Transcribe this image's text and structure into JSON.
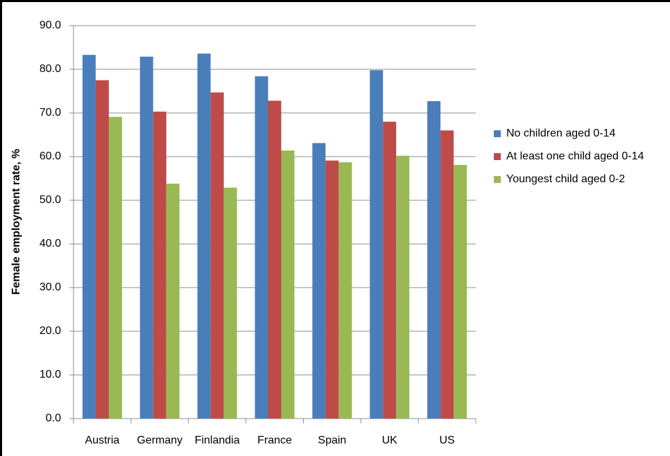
{
  "chart_data": {
    "type": "bar",
    "y_label": "Female employment rate, %",
    "categories": [
      "Austria",
      "Germany",
      "Finlandia",
      "France",
      "Spain",
      "UK",
      "US"
    ],
    "series": [
      {
        "name": "No children aged 0-14",
        "color": "#4a7ebb",
        "values": [
          83.3,
          82.9,
          83.6,
          78.4,
          63.1,
          79.8,
          72.7
        ]
      },
      {
        "name": "At least one child aged 0-14",
        "color": "#be4b48",
        "values": [
          77.5,
          70.3,
          74.7,
          72.8,
          59.1,
          68.0,
          66.0
        ]
      },
      {
        "name": "Youngest child aged 0-2",
        "color": "#98b954",
        "values": [
          69.1,
          53.8,
          52.9,
          61.4,
          58.7,
          60.2,
          58.1
        ]
      }
    ],
    "ylim": [
      0,
      90
    ],
    "yticks": [
      {
        "value": 0,
        "label": "0.0"
      },
      {
        "value": 10,
        "label": "10.0"
      },
      {
        "value": 20,
        "label": "20.0"
      },
      {
        "value": 30,
        "label": "30.0"
      },
      {
        "value": 40,
        "label": "40.0"
      },
      {
        "value": 50,
        "label": "50.0"
      },
      {
        "value": 60,
        "label": "60.0"
      },
      {
        "value": 70,
        "label": "70.0"
      },
      {
        "value": 80,
        "label": "80.0"
      },
      {
        "value": 90,
        "label": "90.0"
      }
    ],
    "grid": true,
    "legend": "right"
  }
}
